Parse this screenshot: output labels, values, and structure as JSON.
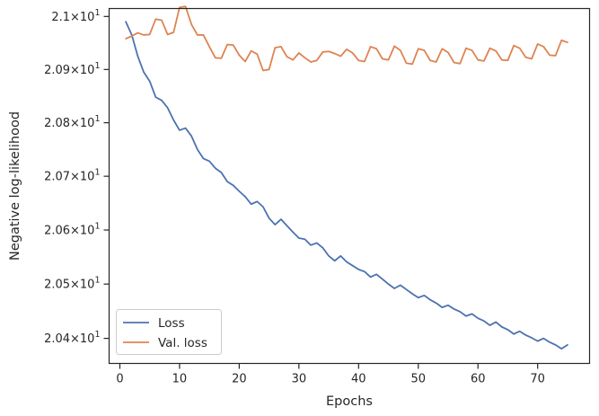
{
  "chart_data": {
    "type": "line",
    "title": "",
    "xlabel": "Epochs",
    "ylabel": "Negative log-likelihood",
    "xlim": [
      -1.8,
      78.7
    ],
    "ylim": [
      20.354,
      21.015
    ],
    "y_scale": "log",
    "grid": false,
    "legend_position": "lower-left",
    "x_ticks": [
      {
        "value": 0,
        "label": "0"
      },
      {
        "value": 10,
        "label": "10"
      },
      {
        "value": 20,
        "label": "20"
      },
      {
        "value": 30,
        "label": "30"
      },
      {
        "value": 40,
        "label": "40"
      },
      {
        "value": 50,
        "label": "50"
      },
      {
        "value": 60,
        "label": "60"
      },
      {
        "value": 70,
        "label": "70"
      }
    ],
    "y_ticks": [
      {
        "value": 20.4,
        "mantissa": "2.04",
        "exponent": "1"
      },
      {
        "value": 20.5,
        "mantissa": "2.05",
        "exponent": "1"
      },
      {
        "value": 20.6,
        "mantissa": "2.06",
        "exponent": "1"
      },
      {
        "value": 20.7,
        "mantissa": "2.07",
        "exponent": "1"
      },
      {
        "value": 20.8,
        "mantissa": "2.08",
        "exponent": "1"
      },
      {
        "value": 20.9,
        "mantissa": "2.09",
        "exponent": "1"
      },
      {
        "value": 21.0,
        "mantissa": "2.1",
        "exponent": "1"
      }
    ],
    "x": [
      1,
      2,
      3,
      4,
      5,
      6,
      7,
      8,
      9,
      10,
      11,
      12,
      13,
      14,
      15,
      16,
      17,
      18,
      19,
      20,
      21,
      22,
      23,
      24,
      25,
      26,
      27,
      28,
      29,
      30,
      31,
      32,
      33,
      34,
      35,
      36,
      37,
      38,
      39,
      40,
      41,
      42,
      43,
      44,
      45,
      46,
      47,
      48,
      49,
      50,
      51,
      52,
      53,
      54,
      55,
      56,
      57,
      58,
      59,
      60,
      61,
      62,
      63,
      64,
      65,
      66,
      67,
      68,
      69,
      70,
      71,
      72,
      73,
      74,
      75
    ],
    "series": [
      {
        "name": "Loss",
        "color": "#4c72b0",
        "values": [
          20.99,
          20.965,
          20.925,
          20.895,
          20.878,
          20.848,
          20.842,
          20.828,
          20.805,
          20.786,
          20.79,
          20.775,
          20.75,
          20.733,
          20.728,
          20.715,
          20.707,
          20.69,
          20.683,
          20.672,
          20.662,
          20.648,
          20.653,
          20.643,
          20.622,
          20.61,
          20.62,
          20.608,
          20.596,
          20.585,
          20.583,
          20.572,
          20.576,
          20.567,
          20.552,
          20.543,
          20.552,
          20.541,
          20.534,
          20.527,
          20.523,
          20.513,
          20.518,
          20.509,
          20.5,
          20.492,
          20.498,
          20.49,
          20.482,
          20.475,
          20.479,
          20.471,
          20.465,
          20.457,
          20.461,
          20.454,
          20.449,
          20.441,
          20.445,
          20.437,
          20.432,
          20.424,
          20.43,
          20.421,
          20.416,
          20.408,
          20.413,
          20.406,
          20.401,
          20.395,
          20.4,
          20.393,
          20.388,
          20.381,
          20.388
        ]
      },
      {
        "name": "Val. loss",
        "color": "#dd8452",
        "values": [
          20.958,
          20.963,
          20.969,
          20.965,
          20.966,
          20.995,
          20.993,
          20.966,
          20.97,
          21.017,
          21.019,
          20.985,
          20.965,
          20.965,
          20.943,
          20.922,
          20.921,
          20.947,
          20.946,
          20.927,
          20.915,
          20.935,
          20.929,
          20.898,
          20.9,
          20.941,
          20.943,
          20.924,
          20.918,
          20.931,
          20.922,
          20.914,
          20.917,
          20.933,
          20.934,
          20.93,
          20.925,
          20.938,
          20.931,
          20.917,
          20.915,
          20.943,
          20.939,
          20.92,
          20.918,
          20.944,
          20.936,
          20.912,
          20.91,
          20.939,
          20.936,
          20.917,
          20.914,
          20.939,
          20.932,
          20.913,
          20.911,
          20.94,
          20.936,
          20.918,
          20.916,
          20.94,
          20.935,
          20.918,
          20.917,
          20.945,
          20.94,
          20.923,
          20.92,
          20.948,
          20.943,
          20.927,
          20.926,
          20.955,
          20.951
        ]
      }
    ]
  }
}
